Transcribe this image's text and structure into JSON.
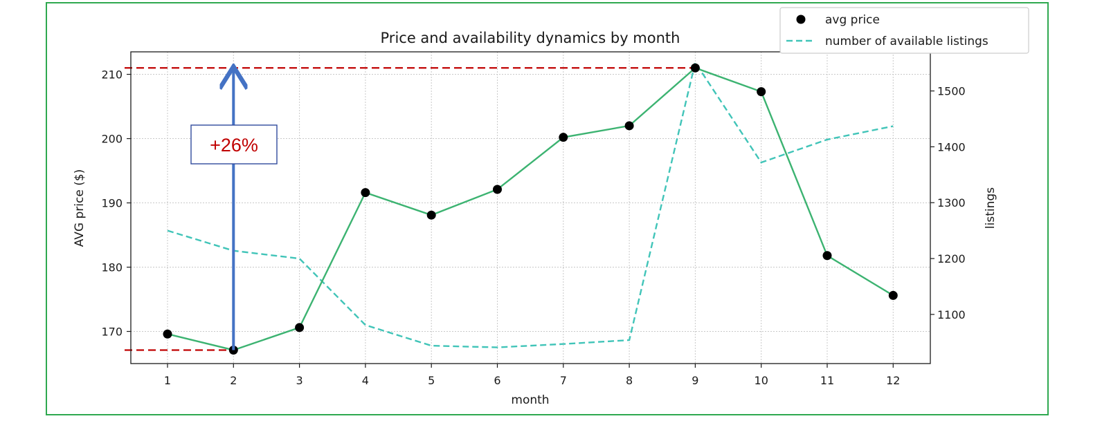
{
  "chart_data": {
    "type": "line",
    "title": "Price and availability dynamics by month",
    "xlabel": "month",
    "ylabel": "AVG price ($)",
    "y2label": "listings",
    "x": [
      1,
      2,
      3,
      4,
      5,
      6,
      7,
      8,
      9,
      10,
      11,
      12
    ],
    "ylim": [
      165,
      213.5
    ],
    "y2lim": [
      1012,
      1570
    ],
    "yticks": [
      170,
      180,
      190,
      200,
      210
    ],
    "y2ticks": [
      1100,
      1200,
      1300,
      1400,
      1500
    ],
    "grid": true,
    "legend_position": "top-right",
    "series": [
      {
        "name": "avg price",
        "axis": "left",
        "style": "solid line with black circle markers",
        "color": "#3cb371",
        "marker_color": "#000000",
        "values": [
          169.6,
          167.1,
          170.6,
          191.6,
          188.1,
          192.1,
          200.2,
          202.0,
          211.0,
          207.3,
          181.8,
          175.6
        ]
      },
      {
        "name": "number of available listings",
        "axis": "right",
        "style": "dashed",
        "color": "#40c4b8",
        "values": [
          1250,
          1214,
          1200,
          1081,
          1044,
          1041,
          1047,
          1054,
          1551,
          1372,
          1413,
          1437
        ]
      }
    ],
    "annotations": [
      {
        "type": "hline",
        "value": 211.0,
        "axis": "left",
        "color": "#c00000",
        "style": "dashed",
        "span": "full width to month 9"
      },
      {
        "type": "hline",
        "value": 167.1,
        "axis": "left",
        "color": "#c00000",
        "style": "dashed",
        "span": "left edge to month 2"
      },
      {
        "type": "arrow",
        "x": 2,
        "from": 167.1,
        "to": 211.0,
        "color": "#4472c4"
      },
      {
        "type": "label",
        "text": "+26%",
        "color": "#c00000",
        "border": "#2f4a9c"
      }
    ]
  }
}
